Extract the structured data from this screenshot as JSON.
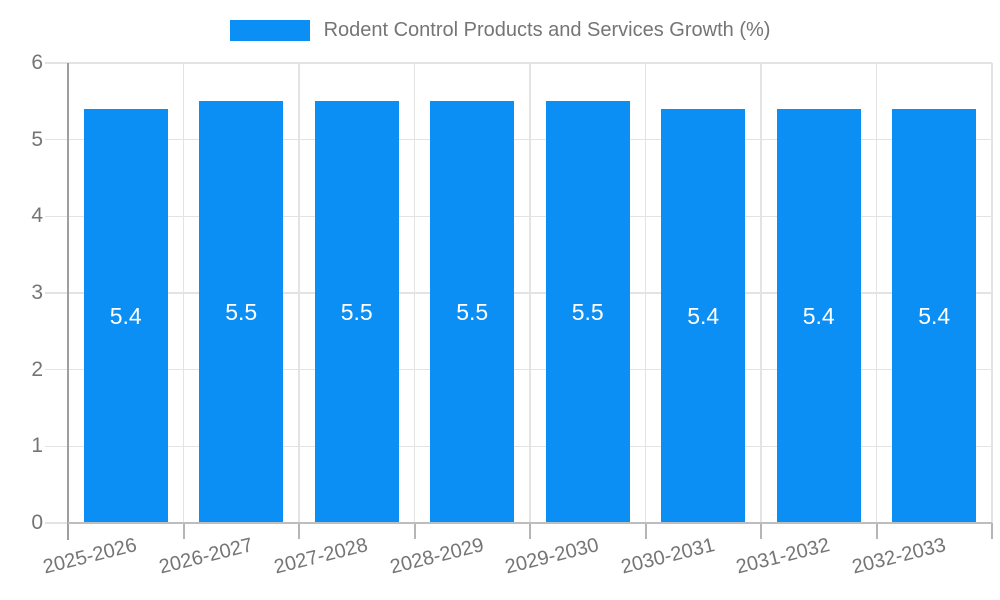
{
  "chart_data": {
    "type": "bar",
    "title": "Rodent Control Products and Services Growth (%)",
    "categories": [
      "2025-2026",
      "2026-2027",
      "2027-2028",
      "2028-2029",
      "2029-2030",
      "2030-2031",
      "2031-2032",
      "2032-2033"
    ],
    "values": [
      5.4,
      5.5,
      5.5,
      5.5,
      5.5,
      5.4,
      5.4,
      5.4
    ],
    "bar_labels": [
      "5.4",
      "5.5",
      "5.5",
      "5.5",
      "5.5",
      "5.4",
      "5.4",
      "5.4"
    ],
    "xlabel": "",
    "ylabel": "",
    "ylim": [
      0,
      6
    ],
    "yticks": [
      0,
      1,
      2,
      3,
      4,
      5,
      6
    ],
    "ytick_labels": [
      "0",
      "1",
      "2",
      "3",
      "4",
      "5",
      "6"
    ],
    "grid": "on",
    "legend_position": "top",
    "bar_color": "#0b8ff5",
    "bar_label_color": "#ffffff",
    "axis_text_color": "#757575",
    "grid_color": "#e3e3e3",
    "y_axis_line_color": "#9e9e9e",
    "x_axis_line_color": "#bdbdbd"
  }
}
